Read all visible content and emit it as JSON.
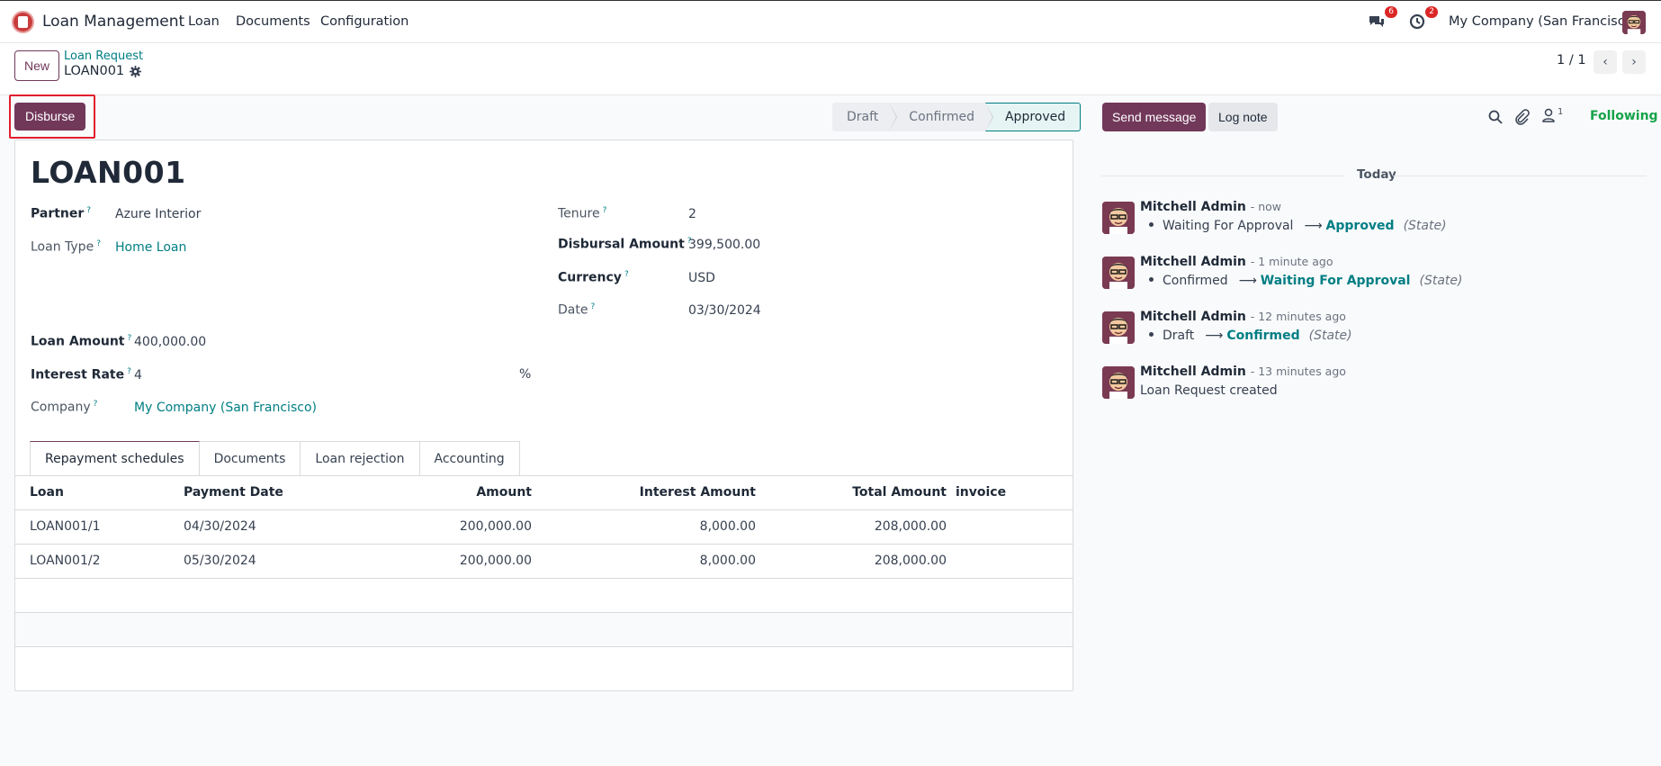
{
  "navbar": {
    "app_name": "Loan Management",
    "menus": [
      "Loan",
      "Documents",
      "Configuration"
    ],
    "messages_badge": "6",
    "activities_badge": "2",
    "company": "My Company (San Francisco)"
  },
  "control": {
    "new_label": "New",
    "breadcrumb": "Loan Request",
    "record_name": "LOAN001",
    "pager": "1 / 1"
  },
  "actions": {
    "disburse_label": "Disburse"
  },
  "statusbar": {
    "stages": [
      "Draft",
      "Confirmed",
      "Approved"
    ],
    "active_stage": "Approved"
  },
  "form": {
    "title": "LOAN001",
    "partner_label": "Partner",
    "partner": "Azure Interior",
    "loan_type_label": "Loan Type",
    "loan_type": "Home Loan",
    "loan_amount_label": "Loan Amount",
    "loan_amount": "400,000.00",
    "interest_rate_label": "Interest Rate",
    "interest_rate": "4",
    "interest_unit": "%",
    "company_label": "Company",
    "company": "My Company (San Francisco)",
    "tenure_label": "Tenure",
    "tenure": "2",
    "disbursal_label": "Disbursal Amount",
    "disbursal_amount": "399,500.00",
    "currency_label": "Currency",
    "currency": "USD",
    "date_label": "Date",
    "date": "03/30/2024",
    "help_mark": "?"
  },
  "tabs": [
    "Repayment schedules",
    "Documents",
    "Loan rejection",
    "Accounting"
  ],
  "table": {
    "headers": [
      "Loan",
      "Payment Date",
      "Amount",
      "Interest Amount",
      "Total Amount",
      "invoice"
    ],
    "rows": [
      [
        "LOAN001/1",
        "04/30/2024",
        "200,000.00",
        "8,000.00",
        "208,000.00",
        ""
      ],
      [
        "LOAN001/2",
        "05/30/2024",
        "200,000.00",
        "8,000.00",
        "208,000.00",
        ""
      ]
    ]
  },
  "chatter": {
    "send_label": "Send message",
    "log_label": "Log note",
    "followers_count": "1",
    "following_label": "Following",
    "date_separator": "Today",
    "messages": [
      {
        "author": "Mitchell Admin",
        "time": "- now",
        "from": "Waiting For Approval",
        "to": "Approved",
        "field": "(State)"
      },
      {
        "author": "Mitchell Admin",
        "time": "- 1 minute ago",
        "from": "Confirmed",
        "to": "Waiting For Approval",
        "field": "(State)"
      },
      {
        "author": "Mitchell Admin",
        "time": "- 12 minutes ago",
        "from": "Draft",
        "to": "Confirmed",
        "field": "(State)"
      },
      {
        "author": "Mitchell Admin",
        "time": "- 13 minutes ago",
        "text": "Loan Request created"
      }
    ]
  },
  "colors": {
    "primary": "#71385a",
    "link": "#017e84",
    "highlight": "#e11d2e",
    "following": "#16a34a"
  }
}
